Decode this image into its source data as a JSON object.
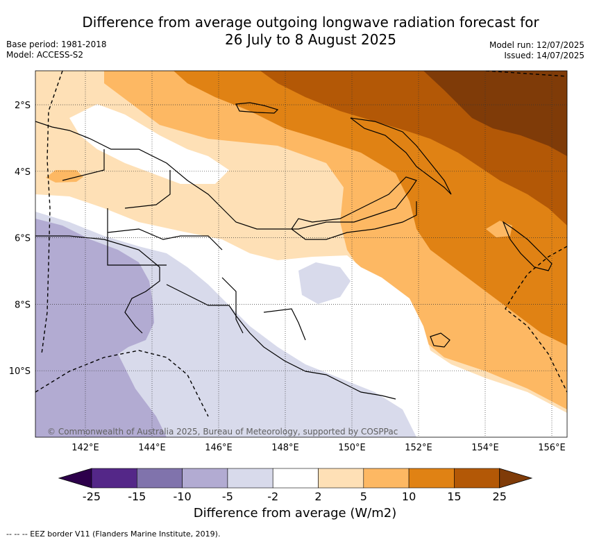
{
  "title_line1": "Difference from average outgoing longwave radiation forecast for",
  "title_line2": "26 July to 8 August 2025",
  "base_period": "Base period: 1981-2018",
  "model": "Model: ACCESS-S2",
  "model_run": "Model run: 12/07/2025",
  "issued": "Issued: 14/07/2025",
  "map": {
    "lon_labels": [
      "142°E",
      "144°E",
      "146°E",
      "148°E",
      "150°E",
      "152°E",
      "154°E",
      "156°E"
    ],
    "lat_labels": [
      "2°S",
      "4°S",
      "6°S",
      "8°S",
      "10°S"
    ],
    "copyright": "© Commonwealth of Australia 2025, Bureau of Meteorology, supported by COSPPac"
  },
  "colorbar": {
    "ticks": [
      "-25",
      "-15",
      "-10",
      "-5",
      "-2",
      "2",
      "5",
      "10",
      "15",
      "25"
    ],
    "colors": [
      "#542788",
      "#8073ac",
      "#b2abd2",
      "#d8daeb",
      "#ffffff",
      "#fee0b6",
      "#fdb863",
      "#e08214",
      "#b35806"
    ],
    "under_color": "#2d004b",
    "over_color": "#7f3b08",
    "label": "Difference from average (W/m2)"
  },
  "footer": "--  --  -- EEZ border V11 (Flanders Marine Institute, 2019)."
}
